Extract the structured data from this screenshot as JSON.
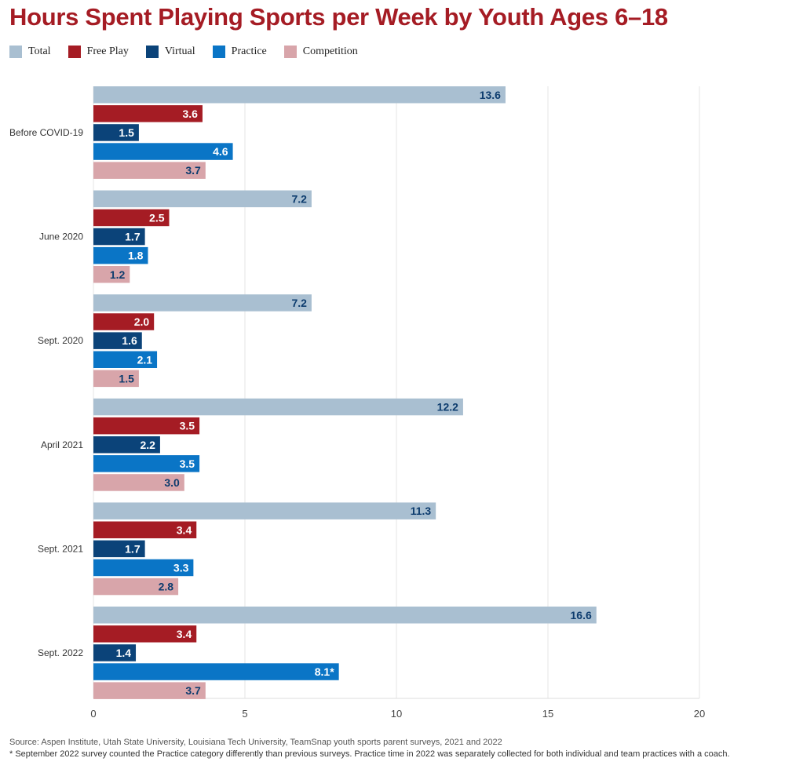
{
  "chart_data": {
    "type": "bar",
    "orientation": "horizontal",
    "title": "Hours Spent Playing Sports per Week by Youth Ages 6–18",
    "categories": [
      "Before COVID-19",
      "June 2020",
      "Sept. 2020",
      "April 2021",
      "Sept. 2021",
      "Sept. 2022"
    ],
    "series": [
      {
        "name": "Total",
        "color": "#a9bfd1",
        "label_color": "#0d3c6e",
        "values": [
          13.6,
          7.2,
          7.2,
          12.2,
          11.3,
          16.6
        ],
        "labels": [
          "13.6",
          "7.2",
          "7.2",
          "12.2",
          "11.3",
          "16.6"
        ]
      },
      {
        "name": "Free Play",
        "color": "#a51c24",
        "label_color": "#ffffff",
        "values": [
          3.6,
          2.5,
          2.0,
          3.5,
          3.4,
          3.4
        ],
        "labels": [
          "3.6",
          "2.5",
          "2.0",
          "3.5",
          "3.4",
          "3.4"
        ]
      },
      {
        "name": "Virtual",
        "color": "#0b4379",
        "label_color": "#ffffff",
        "values": [
          1.5,
          1.7,
          1.6,
          2.2,
          1.7,
          1.4
        ],
        "labels": [
          "1.5",
          "1.7",
          "1.6",
          "2.2",
          "1.7",
          "1.4"
        ]
      },
      {
        "name": "Practice",
        "color": "#0a75c6",
        "label_color": "#ffffff",
        "values": [
          4.6,
          1.8,
          2.1,
          3.5,
          3.3,
          8.1
        ],
        "labels": [
          "4.6",
          "1.8",
          "2.1",
          "3.5",
          "3.3",
          "8.1*"
        ]
      },
      {
        "name": "Competition",
        "color": "#d8a5aa",
        "label_color": "#0d3c6e",
        "values": [
          3.7,
          1.2,
          1.5,
          3.0,
          2.8,
          3.7
        ],
        "labels": [
          "3.7",
          "1.2",
          "1.5",
          "3.0",
          "2.8",
          "3.7"
        ]
      }
    ],
    "xlim": [
      0,
      20
    ],
    "xticks": [
      0,
      5,
      10,
      15,
      20
    ],
    "xlabel": "",
    "ylabel": "",
    "grid": true,
    "legend_position": "top-left"
  },
  "footnotes": {
    "source": "Source: Aspen Institute, Utah State University, Louisiana Tech University, TeamSnap youth sports parent surveys, 2021 and 2022",
    "note": "* September 2022 survey counted the Practice category differently than previous surveys. Practice time in 2022 was separately collected for both individual and team practices with a coach."
  }
}
